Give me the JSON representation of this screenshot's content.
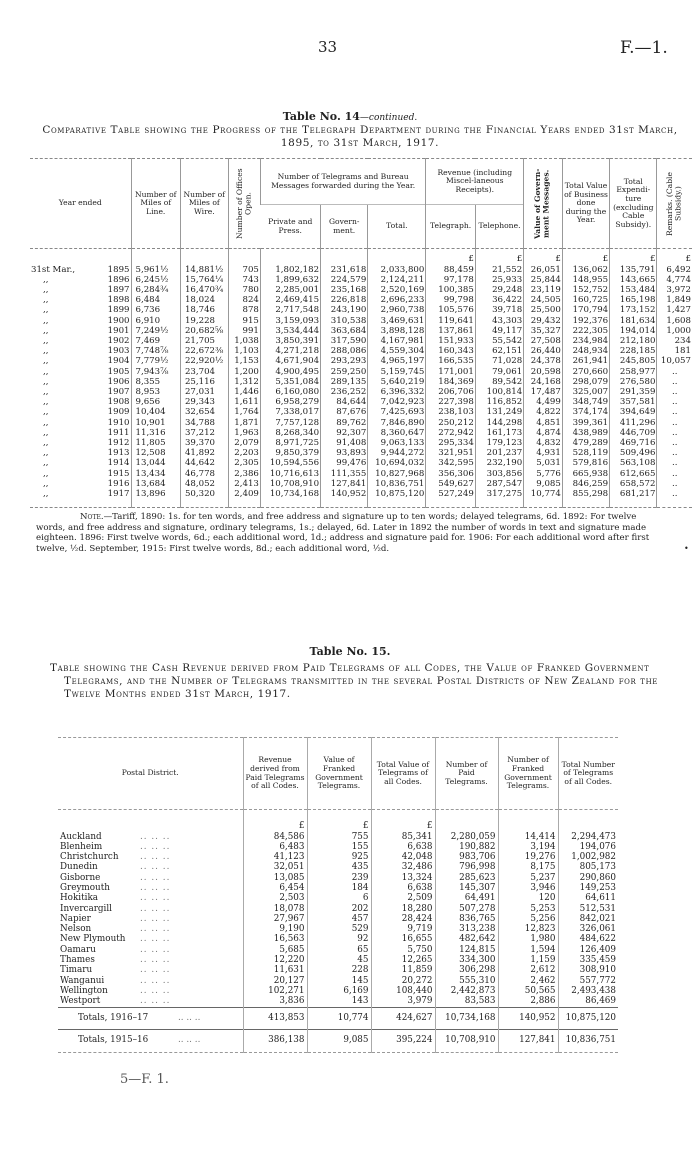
{
  "header": {
    "page_number": "33",
    "reference": "F.—1."
  },
  "table14": {
    "title": "Table No. 14",
    "title_suffix": "—continued.",
    "caption": "Comparative Table showing the Progress of the Telegraph Department during the Financial Years ended 31st March, 1895, to 31st March, 1917.",
    "headers": {
      "year_ended": "Year ended",
      "miles_line": "Number of Miles of Line.",
      "miles_wire": "Number of Miles of Wire.",
      "offices_open": "Number of Offices Open.",
      "telegrams_group": "Number of Telegrams and Bureau Messages forwarded during the Year.",
      "private_press": "Private and Press.",
      "government": "Govern-ment.",
      "total": "Total.",
      "revenue_group": "Revenue (including Miscel-laneous Receipts).",
      "telegraph": "Telegraph.",
      "telephone": "Telephone.",
      "govt_messages": "Value of Govern-ment Messages.",
      "total_value": "Total Value of Business done during the Year.",
      "expenditure": "Total Expendi-ture (excluding Cable Subsidy).",
      "remarks": "Remarks. (Cable Subsidy.)"
    },
    "currency_symbol": "£",
    "rows": [
      [
        "31st Mar.,",
        "1895",
        "5,961½",
        "14,881½",
        "705",
        "1,802,182",
        "231,618",
        "2,033,800",
        "88,459",
        "21,552",
        "26,051",
        "136,062",
        "135,791",
        "6,492"
      ],
      [
        ",,",
        "1896",
        "6,245½",
        "15,764¼",
        "743",
        "1,899,632",
        "224,579",
        "2,124,211",
        "97,178",
        "25,933",
        "25,844",
        "148,955",
        "143,665",
        "4,774"
      ],
      [
        ",,",
        "1897",
        "6,284¾",
        "16,470¾",
        "780",
        "2,285,001",
        "235,168",
        "2,520,169",
        "100,385",
        "29,248",
        "23,119",
        "152,752",
        "153,484",
        "3,972"
      ],
      [
        ",,",
        "1898",
        "6,484",
        "18,024",
        "824",
        "2,469,415",
        "226,818",
        "2,696,233",
        "99,798",
        "36,422",
        "24,505",
        "160,725",
        "165,198",
        "1,849"
      ],
      [
        ",,",
        "1899",
        "6,736",
        "18,746",
        "878",
        "2,717,548",
        "243,190",
        "2,960,738",
        "105,576",
        "39,718",
        "25,500",
        "170,794",
        "173,152",
        "1,427"
      ],
      [
        ",,",
        "1900",
        "6,910",
        "19,228",
        "915",
        "3,159,093",
        "310,538",
        "3,469,631",
        "119,641",
        "43,303",
        "29,432",
        "192,376",
        "181,634",
        "1,608"
      ],
      [
        ",,",
        "1901",
        "7,249½",
        "20,682⅝",
        "991",
        "3,534,444",
        "363,684",
        "3,898,128",
        "137,861",
        "49,117",
        "35,327",
        "222,305",
        "194,014",
        "1,000"
      ],
      [
        ",,",
        "1902",
        "7,469",
        "21,705",
        "1,038",
        "3,850,391",
        "317,590",
        "4,167,981",
        "151,933",
        "55,542",
        "27,508",
        "234,984",
        "212,180",
        "234"
      ],
      [
        ",,",
        "1903",
        "7,748⅞",
        "22,672⅜",
        "1,103",
        "4,271,218",
        "288,086",
        "4,559,304",
        "160,343",
        "62,151",
        "26,440",
        "248,934",
        "228,185",
        "181"
      ],
      [
        ",,",
        "1904",
        "7,779½",
        "22,920½",
        "1,153",
        "4,671,904",
        "293,293",
        "4,965,197",
        "166,535",
        "71,028",
        "24,378",
        "261,941",
        "245,805",
        "10,057"
      ],
      [
        ",,",
        "1905",
        "7,943⅞",
        "23,704",
        "1,200",
        "4,900,495",
        "259,250",
        "5,159,745",
        "171,001",
        "79,061",
        "20,598",
        "270,660",
        "258,977",
        ".."
      ],
      [
        ",,",
        "1906",
        "8,355",
        "25,116",
        "1,312",
        "5,351,084",
        "289,135",
        "5,640,219",
        "184,369",
        "89,542",
        "24,168",
        "298,079",
        "276,580",
        ".."
      ],
      [
        ",,",
        "1907",
        "8,953",
        "27,031",
        "1,446",
        "6,160,080",
        "236,252",
        "6,396,332",
        "206,706",
        "100,814",
        "17,487",
        "325,007",
        "291,359",
        ".."
      ],
      [
        ",,",
        "1908",
        "9,656",
        "29,343",
        "1,611",
        "6,958,279",
        "84,644",
        "7,042,923",
        "227,398",
        "116,852",
        "4,499",
        "348,749",
        "357,581",
        ".."
      ],
      [
        ",,",
        "1909",
        "10,404",
        "32,654",
        "1,764",
        "7,338,017",
        "87,676",
        "7,425,693",
        "238,103",
        "131,249",
        "4,822",
        "374,174",
        "394,649",
        ".."
      ],
      [
        ",,",
        "1910",
        "10,901",
        "34,788",
        "1,871",
        "7,757,128",
        "89,762",
        "7,846,890",
        "250,212",
        "144,298",
        "4,851",
        "399,361",
        "411,296",
        ".."
      ],
      [
        ",,",
        "1911",
        "11,316",
        "37,212",
        "1,963",
        "8,268,340",
        "92,307",
        "8,360,647",
        "272,942",
        "161,173",
        "4,874",
        "438,989",
        "446,709",
        ".."
      ],
      [
        ",,",
        "1912",
        "11,805",
        "39,370",
        "2,079",
        "8,971,725",
        "91,408",
        "9,063,133",
        "295,334",
        "179,123",
        "4,832",
        "479,289",
        "469,716",
        ".."
      ],
      [
        ",,",
        "1913",
        "12,508",
        "41,892",
        "2,203",
        "9,850,379",
        "93,893",
        "9,944,272",
        "321,951",
        "201,237",
        "4,931",
        "528,119",
        "509,496",
        ".."
      ],
      [
        ",,",
        "1914",
        "13,044",
        "44,642",
        "2,305",
        "10,594,556",
        "99,476",
        "10,694,032",
        "342,595",
        "232,190",
        "5,031",
        "579,816",
        "563,108",
        ".."
      ],
      [
        ",,",
        "1915",
        "13,434",
        "46,778",
        "2,386",
        "10,716,613",
        "111,355",
        "10,827,968",
        "356,306",
        "303,856",
        "5,776",
        "665,938",
        "612,665",
        ".."
      ],
      [
        ",,",
        "1916",
        "13,684",
        "48,052",
        "2,413",
        "10,708,910",
        "127,841",
        "10,836,751",
        "549,627",
        "287,547",
        "9,085",
        "846,259",
        "658,572",
        ".."
      ],
      [
        ",,",
        "1917",
        "13,896",
        "50,320",
        "2,409",
        "10,734,168",
        "140,952",
        "10,875,120",
        "527,249",
        "317,275",
        "10,774",
        "855,298",
        "681,217",
        ".."
      ]
    ],
    "note_label": "Note.",
    "note_text": "—Tariff, 1890: 1s. for ten words, and free address and signature up to ten words; delayed telegrams, 6d. 1892: For twelve words, and free address and signature, ordinary telegrams, 1s.; delayed, 6d. Later in 1892 the number of words in text and signature made eighteen. 1896: First twelve words, 6d.; each additional word, 1d.; address and signature paid for. 1906: For each additional word after first twelve, ½d. September, 1915: First twelve words, 8d.; each additional word, ½d."
  },
  "table15": {
    "title": "Table No. 15.",
    "caption": "Table showing the Cash Revenue derived from Paid Telegrams of all Codes, the Value of Franked Government Telegrams, and the Number of Telegrams transmitted in the several Postal Districts of New Zealand for the Twelve Months ended 31st March, 1917.",
    "headers": {
      "district": "Postal District.",
      "revenue": "Revenue derived from Paid Telegrams of all Codes.",
      "franked_value": "Value of Franked Government Telegrams.",
      "total_value": "Total Value of Telegrams of all Codes.",
      "paid_count": "Number of Paid Telegrams.",
      "franked_count": "Number of Franked Government Telegrams.",
      "total_count": "Total Number of Telegrams of all Codes."
    },
    "currency_symbol": "£",
    "leader_dots": "..      ..      ..",
    "rows": [
      [
        "Auckland",
        "84,586",
        "755",
        "85,341",
        "2,280,059",
        "14,414",
        "2,294,473"
      ],
      [
        "Blenheim",
        "6,483",
        "155",
        "6,638",
        "190,882",
        "3,194",
        "194,076"
      ],
      [
        "Christchurch",
        "41,123",
        "925",
        "42,048",
        "983,706",
        "19,276",
        "1,002,982"
      ],
      [
        "Dunedin",
        "32,051",
        "435",
        "32,486",
        "796,998",
        "8,175",
        "805,173"
      ],
      [
        "Gisborne",
        "13,085",
        "239",
        "13,324",
        "285,623",
        "5,237",
        "290,860"
      ],
      [
        "Greymouth",
        "6,454",
        "184",
        "6,638",
        "145,307",
        "3,946",
        "149,253"
      ],
      [
        "Hokitika",
        "2,503",
        "6",
        "2,509",
        "64,491",
        "120",
        "64,611"
      ],
      [
        "Invercargill",
        "18,078",
        "202",
        "18,280",
        "507,278",
        "5,253",
        "512,531"
      ],
      [
        "Napier",
        "27,967",
        "457",
        "28,424",
        "836,765",
        "5,256",
        "842,021"
      ],
      [
        "Nelson",
        "9,190",
        "529",
        "9,719",
        "313,238",
        "12,823",
        "326,061"
      ],
      [
        "New Plymouth",
        "16,563",
        "92",
        "16,655",
        "482,642",
        "1,980",
        "484,622"
      ],
      [
        "Oamaru",
        "5,685",
        "65",
        "5,750",
        "124,815",
        "1,594",
        "126,409"
      ],
      [
        "Thames",
        "12,220",
        "45",
        "12,265",
        "334,300",
        "1,159",
        "335,459"
      ],
      [
        "Timaru",
        "11,631",
        "228",
        "11,859",
        "306,298",
        "2,612",
        "308,910"
      ],
      [
        "Wanganui",
        "20,127",
        "145",
        "20,272",
        "555,310",
        "2,462",
        "557,772"
      ],
      [
        "Wellington",
        "102,271",
        "6,169",
        "108,440",
        "2,442,873",
        "50,565",
        "2,493,438"
      ],
      [
        "Westport",
        "3,836",
        "143",
        "3,979",
        "83,583",
        "2,886",
        "86,469"
      ]
    ],
    "totals": [
      [
        "Totals, 1916–17",
        "413,853",
        "10,774",
        "424,627",
        "10,734,168",
        "140,952",
        "10,875,120"
      ],
      [
        "Totals, 1915–16",
        "386,138",
        "9,085",
        "395,224",
        "10,708,910",
        "127,841",
        "10,836,751"
      ]
    ]
  },
  "footer": {
    "signature": "5—F. 1."
  }
}
